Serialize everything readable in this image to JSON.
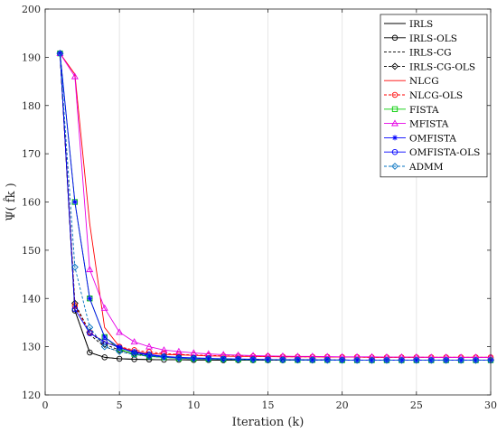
{
  "chart_data": {
    "type": "line",
    "title": "",
    "xlabel": "Iteration (k)",
    "ylabel": "Ψ( f̂k )",
    "xlim": [
      0,
      30
    ],
    "ylim": [
      120,
      200
    ],
    "xticks": [
      0,
      5,
      10,
      15,
      20,
      25,
      30
    ],
    "yticks": [
      120,
      130,
      140,
      150,
      160,
      170,
      180,
      190,
      200
    ],
    "grid": "vertical",
    "legend_position": "top-right",
    "x": [
      1,
      2,
      3,
      4,
      5,
      6,
      7,
      8,
      9,
      10,
      11,
      12,
      13,
      14,
      15,
      16,
      17,
      18,
      19,
      20,
      21,
      22,
      23,
      24,
      25,
      26,
      27,
      28,
      29,
      30
    ],
    "series": [
      {
        "name": "IRLS",
        "color": "#000000",
        "dash": "",
        "marker": "none",
        "values": [
          190.8,
          137.5,
          128.8,
          127.8,
          127.5,
          127.4,
          127.35,
          127.3,
          127.3,
          127.25,
          127.25,
          127.2,
          127.2,
          127.2,
          127.2,
          127.2,
          127.2,
          127.2,
          127.2,
          127.2,
          127.2,
          127.2,
          127.2,
          127.2,
          127.2,
          127.2,
          127.2,
          127.2,
          127.2,
          127.2
        ]
      },
      {
        "name": "IRLS-OLS",
        "color": "#000000",
        "dash": "",
        "marker": "circle",
        "values": [
          190.8,
          137.5,
          128.8,
          127.8,
          127.5,
          127.4,
          127.35,
          127.3,
          127.3,
          127.25,
          127.25,
          127.2,
          127.2,
          127.2,
          127.2,
          127.2,
          127.2,
          127.2,
          127.2,
          127.2,
          127.2,
          127.2,
          127.2,
          127.2,
          127.2,
          127.2,
          127.2,
          127.2,
          127.2,
          127.2
        ]
      },
      {
        "name": "IRLS-CG",
        "color": "#000000",
        "dash": "3,2",
        "marker": "none",
        "values": [
          190.8,
          139.0,
          132.5,
          130.0,
          129.0,
          128.4,
          128.0,
          127.8,
          127.7,
          127.6,
          127.5,
          127.45,
          127.4,
          127.35,
          127.3,
          127.3,
          127.3,
          127.25,
          127.25,
          127.25,
          127.2,
          127.2,
          127.2,
          127.2,
          127.2,
          127.2,
          127.2,
          127.2,
          127.2,
          127.2
        ]
      },
      {
        "name": "IRLS-CG-OLS",
        "color": "#000000",
        "dash": "3,2",
        "marker": "diamond",
        "values": [
          190.8,
          139.0,
          133.0,
          130.5,
          129.3,
          128.6,
          128.1,
          127.9,
          127.7,
          127.6,
          127.5,
          127.45,
          127.4,
          127.35,
          127.3,
          127.3,
          127.3,
          127.25,
          127.25,
          127.25,
          127.2,
          127.2,
          127.2,
          127.2,
          127.2,
          127.2,
          127.2,
          127.2,
          127.2,
          127.2
        ]
      },
      {
        "name": "NLCG",
        "color": "#ff0000",
        "dash": "",
        "marker": "none",
        "values": [
          190.8,
          186.5,
          155.5,
          134.0,
          130.0,
          129.0,
          128.6,
          128.4,
          128.3,
          128.2,
          128.1,
          128.05,
          128.0,
          128.0,
          127.95,
          127.9,
          127.9,
          127.9,
          127.85,
          127.85,
          127.85,
          127.8,
          127.8,
          127.8,
          127.8,
          127.8,
          127.8,
          127.8,
          127.8,
          127.8
        ]
      },
      {
        "name": "NLCG-OLS",
        "color": "#ff0000",
        "dash": "3,2",
        "marker": "circle",
        "values": [
          190.8,
          138.5,
          133.0,
          131.0,
          130.0,
          129.3,
          128.9,
          128.6,
          128.4,
          128.3,
          128.2,
          128.1,
          128.05,
          128.0,
          128.0,
          127.95,
          127.9,
          127.9,
          127.9,
          127.85,
          127.85,
          127.8,
          127.8,
          127.8,
          127.8,
          127.8,
          127.8,
          127.8,
          127.8,
          127.8
        ]
      },
      {
        "name": "FISTA",
        "color": "#00cc00",
        "dash": "",
        "marker": "square",
        "values": [
          190.8,
          160.0,
          140.0,
          132.0,
          129.5,
          128.5,
          128.0,
          127.8,
          127.6,
          127.5,
          127.45,
          127.4,
          127.35,
          127.3,
          127.3,
          127.3,
          127.25,
          127.25,
          127.25,
          127.2,
          127.2,
          127.2,
          127.2,
          127.2,
          127.2,
          127.2,
          127.2,
          127.2,
          127.2,
          127.2
        ]
      },
      {
        "name": "MFISTA",
        "color": "#e600e6",
        "dash": "",
        "marker": "triangle",
        "values": [
          190.8,
          186.0,
          146.0,
          138.0,
          133.0,
          131.0,
          130.0,
          129.3,
          129.0,
          128.7,
          128.5,
          128.35,
          128.25,
          128.15,
          128.1,
          128.05,
          128.0,
          128.0,
          127.95,
          127.9,
          127.9,
          127.9,
          127.85,
          127.85,
          127.85,
          127.8,
          127.8,
          127.8,
          127.8,
          127.8
        ]
      },
      {
        "name": "OMFISTA",
        "color": "#0000ff",
        "dash": "",
        "marker": "asterisk",
        "values": [
          190.8,
          160.0,
          140.0,
          132.0,
          129.8,
          128.8,
          128.2,
          127.9,
          127.7,
          127.6,
          127.5,
          127.45,
          127.4,
          127.35,
          127.3,
          127.3,
          127.25,
          127.25,
          127.25,
          127.2,
          127.2,
          127.2,
          127.2,
          127.2,
          127.2,
          127.2,
          127.2,
          127.2,
          127.2,
          127.2
        ]
      },
      {
        "name": "OMFISTA-OLS",
        "color": "#0000ff",
        "dash": "",
        "marker": "circle",
        "values": [
          190.8,
          137.8,
          132.8,
          131.0,
          129.8,
          128.9,
          128.4,
          128.0,
          127.8,
          127.7,
          127.6,
          127.5,
          127.45,
          127.4,
          127.35,
          127.3,
          127.3,
          127.25,
          127.25,
          127.25,
          127.2,
          127.2,
          127.2,
          127.2,
          127.2,
          127.2,
          127.2,
          127.2,
          127.2,
          127.2
        ]
      },
      {
        "name": "ADMM",
        "color": "#0070c0",
        "dash": "3,2",
        "marker": "diamond",
        "values": [
          190.8,
          146.5,
          134.0,
          130.0,
          129.0,
          128.4,
          128.0,
          127.8,
          127.6,
          127.5,
          127.45,
          127.4,
          127.35,
          127.3,
          127.3,
          127.25,
          127.25,
          127.25,
          127.2,
          127.2,
          127.2,
          127.2,
          127.2,
          127.2,
          127.2,
          127.2,
          127.2,
          127.2,
          127.2,
          127.2
        ]
      }
    ]
  }
}
